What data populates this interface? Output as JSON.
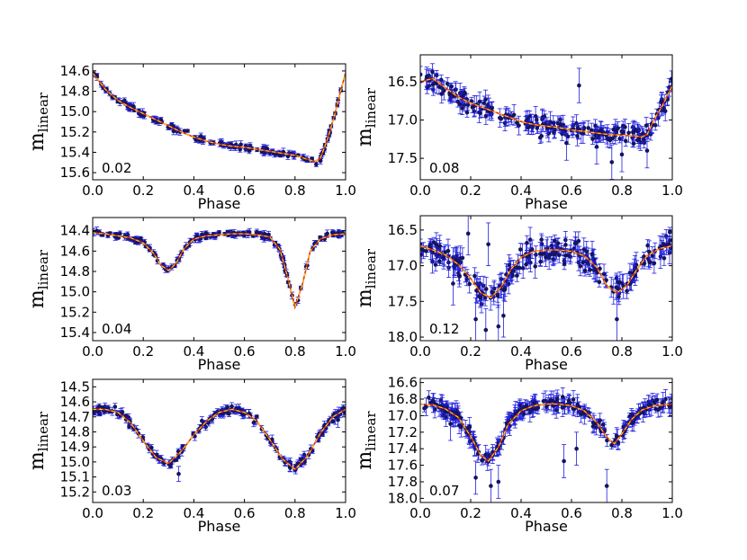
{
  "chart_data": [
    {
      "id": "p1",
      "type": "scatter",
      "title": "",
      "xlabel": "Phase",
      "ylabel_main": "m",
      "ylabel_sub": "linear",
      "corner_label": "0.02",
      "xlim": [
        0.0,
        1.0
      ],
      "ylim": [
        15.67,
        14.53
      ],
      "xticks": [
        "0.0",
        "0.2",
        "0.4",
        "0.6",
        "0.8",
        "1.0"
      ],
      "yticks": [
        "14.6",
        "14.8",
        "15.0",
        "15.2",
        "15.4",
        "15.6"
      ],
      "fit_curve": {
        "x": [
          0.0,
          0.05,
          0.1,
          0.15,
          0.2,
          0.25,
          0.3,
          0.35,
          0.4,
          0.45,
          0.5,
          0.55,
          0.6,
          0.65,
          0.7,
          0.75,
          0.8,
          0.85,
          0.88,
          0.9,
          0.93,
          0.96,
          0.98,
          1.0
        ],
        "y": [
          14.62,
          14.78,
          14.89,
          14.96,
          15.02,
          15.08,
          15.14,
          15.2,
          15.25,
          15.29,
          15.32,
          15.34,
          15.35,
          15.37,
          15.39,
          15.41,
          15.43,
          15.47,
          15.49,
          15.46,
          15.26,
          15.0,
          14.8,
          14.62
        ]
      },
      "scatter_points": {
        "n": 160,
        "scatter": 0.02,
        "err_mean": 0.025,
        "outliers": []
      }
    },
    {
      "id": "p2",
      "type": "scatter",
      "title": "",
      "xlabel": "Phase",
      "ylabel_main": "m",
      "ylabel_sub": "linear",
      "corner_label": "0.08",
      "xlim": [
        0.0,
        1.0
      ],
      "ylim": [
        17.78,
        16.15
      ],
      "xticks": [
        "0.0",
        "0.2",
        "0.4",
        "0.6",
        "0.8",
        "1.0"
      ],
      "yticks": [
        "16.5",
        "17.0",
        "17.5"
      ],
      "fit_curve": {
        "x": [
          0.0,
          0.05,
          0.1,
          0.15,
          0.2,
          0.25,
          0.3,
          0.35,
          0.4,
          0.45,
          0.5,
          0.55,
          0.6,
          0.65,
          0.7,
          0.75,
          0.8,
          0.85,
          0.88,
          0.9,
          0.93,
          0.96,
          1.0
        ],
        "y": [
          16.5,
          16.46,
          16.58,
          16.7,
          16.78,
          16.84,
          16.9,
          16.96,
          17.02,
          17.06,
          17.08,
          17.1,
          17.13,
          17.15,
          17.17,
          17.19,
          17.2,
          17.21,
          17.22,
          17.19,
          16.98,
          16.82,
          16.55
        ]
      },
      "scatter_points": {
        "n": 230,
        "scatter": 0.09,
        "err_mean": 0.09,
        "outliers": [
          [
            0.63,
            16.55
          ],
          [
            0.76,
            17.55
          ],
          [
            0.8,
            17.45
          ],
          [
            0.7,
            17.35
          ],
          [
            0.58,
            17.3
          ],
          [
            0.9,
            17.4
          ]
        ]
      }
    },
    {
      "id": "p3",
      "type": "scatter",
      "title": "",
      "xlabel": "Phase",
      "ylabel_main": "m",
      "ylabel_sub": "linear",
      "corner_label": "0.04",
      "xlim": [
        0.0,
        1.0
      ],
      "ylim": [
        15.48,
        14.27
      ],
      "xticks": [
        "0.0",
        "0.2",
        "0.4",
        "0.6",
        "0.8",
        "1.0"
      ],
      "yticks": [
        "14.4",
        "14.6",
        "14.8",
        "15.0",
        "15.2",
        "15.4"
      ],
      "fit_curve": {
        "x": [
          0.0,
          0.05,
          0.1,
          0.15,
          0.2,
          0.24,
          0.27,
          0.3,
          0.33,
          0.36,
          0.4,
          0.45,
          0.5,
          0.55,
          0.6,
          0.65,
          0.7,
          0.74,
          0.77,
          0.8,
          0.83,
          0.86,
          0.9,
          0.95,
          1.0
        ],
        "y": [
          14.42,
          14.43,
          14.45,
          14.47,
          14.52,
          14.62,
          14.74,
          14.79,
          14.72,
          14.58,
          14.48,
          14.45,
          14.44,
          14.43,
          14.43,
          14.44,
          14.46,
          14.58,
          14.85,
          15.15,
          14.92,
          14.6,
          14.48,
          14.44,
          14.43
        ]
      },
      "scatter_points": {
        "n": 170,
        "scatter": 0.02,
        "err_mean": 0.025,
        "outliers": []
      }
    },
    {
      "id": "p4",
      "type": "scatter",
      "title": "",
      "xlabel": "Phase",
      "ylabel_main": "m",
      "ylabel_sub": "linear",
      "corner_label": "0.12",
      "xlim": [
        0.0,
        1.0
      ],
      "ylim": [
        18.05,
        16.3
      ],
      "xticks": [
        "0.0",
        "0.2",
        "0.4",
        "0.6",
        "0.8",
        "1.0"
      ],
      "yticks": [
        "16.5",
        "17.0",
        "17.5",
        "18.0"
      ],
      "fit_curve": {
        "x": [
          0.0,
          0.05,
          0.1,
          0.15,
          0.2,
          0.24,
          0.28,
          0.32,
          0.36,
          0.4,
          0.45,
          0.5,
          0.55,
          0.6,
          0.65,
          0.7,
          0.74,
          0.78,
          0.82,
          0.86,
          0.9,
          0.95,
          1.0
        ],
        "y": [
          16.72,
          16.78,
          16.85,
          16.98,
          17.18,
          17.38,
          17.45,
          17.3,
          17.05,
          16.88,
          16.8,
          16.78,
          16.78,
          16.8,
          16.86,
          17.02,
          17.28,
          17.38,
          17.28,
          17.05,
          16.86,
          16.76,
          16.72
        ]
      },
      "scatter_points": {
        "n": 240,
        "scatter": 0.12,
        "err_mean": 0.12,
        "outliers": [
          [
            0.26,
            17.9
          ],
          [
            0.31,
            17.85
          ],
          [
            0.22,
            17.75
          ],
          [
            0.78,
            17.75
          ],
          [
            0.19,
            16.55
          ],
          [
            0.13,
            17.25
          ],
          [
            0.27,
            16.7
          ],
          [
            0.33,
            17.7
          ]
        ]
      }
    },
    {
      "id": "p5",
      "type": "scatter",
      "title": "",
      "xlabel": "Phase",
      "ylabel_main": "m",
      "ylabel_sub": "linear",
      "corner_label": "0.03",
      "xlim": [
        0.0,
        1.0
      ],
      "ylim": [
        15.27,
        14.45
      ],
      "xticks": [
        "0.0",
        "0.2",
        "0.4",
        "0.6",
        "0.8",
        "1.0"
      ],
      "yticks": [
        "14.5",
        "14.6",
        "14.7",
        "14.8",
        "14.9",
        "15.0",
        "15.1",
        "15.2"
      ],
      "fit_curve": {
        "x": [
          0.0,
          0.05,
          0.1,
          0.15,
          0.2,
          0.25,
          0.3,
          0.35,
          0.4,
          0.45,
          0.5,
          0.55,
          0.6,
          0.65,
          0.7,
          0.75,
          0.8,
          0.85,
          0.9,
          0.95,
          1.0
        ],
        "y": [
          14.65,
          14.65,
          14.67,
          14.74,
          14.86,
          14.97,
          15.01,
          14.93,
          14.82,
          14.73,
          14.67,
          14.65,
          14.67,
          14.73,
          14.85,
          14.98,
          15.05,
          14.96,
          14.81,
          14.7,
          14.65
        ]
      },
      "scatter_points": {
        "n": 190,
        "scatter": 0.02,
        "err_mean": 0.02,
        "outliers": [
          [
            0.96,
            14.7
          ],
          [
            0.97,
            14.72
          ],
          [
            0.34,
            15.08
          ]
        ]
      }
    },
    {
      "id": "p6",
      "type": "scatter",
      "title": "",
      "xlabel": "Phase",
      "ylabel_main": "m",
      "ylabel_sub": "linear",
      "corner_label": "0.07",
      "xlim": [
        0.0,
        1.0
      ],
      "ylim": [
        18.05,
        16.55
      ],
      "xticks": [
        "0.0",
        "0.2",
        "0.4",
        "0.6",
        "0.8",
        "1.0"
      ],
      "yticks": [
        "16.6",
        "16.8",
        "17.0",
        "17.2",
        "17.4",
        "17.6",
        "17.8",
        "18.0"
      ],
      "fit_curve": {
        "x": [
          0.0,
          0.05,
          0.1,
          0.15,
          0.2,
          0.24,
          0.27,
          0.31,
          0.35,
          0.4,
          0.45,
          0.5,
          0.55,
          0.6,
          0.65,
          0.7,
          0.74,
          0.77,
          0.8,
          0.84,
          0.88,
          0.93,
          1.0
        ],
        "y": [
          16.86,
          16.87,
          16.92,
          17.02,
          17.25,
          17.48,
          17.55,
          17.38,
          17.1,
          16.94,
          16.88,
          16.86,
          16.86,
          16.88,
          16.94,
          17.08,
          17.26,
          17.34,
          17.22,
          17.04,
          16.93,
          16.88,
          16.86
        ]
      },
      "scatter_points": {
        "n": 260,
        "scatter": 0.06,
        "err_mean": 0.08,
        "outliers": [
          [
            0.28,
            17.85
          ],
          [
            0.74,
            17.85
          ],
          [
            0.57,
            17.55
          ],
          [
            0.62,
            17.4
          ],
          [
            0.22,
            17.75
          ],
          [
            0.31,
            17.8
          ],
          [
            0.12,
            17.1
          ]
        ]
      }
    }
  ]
}
